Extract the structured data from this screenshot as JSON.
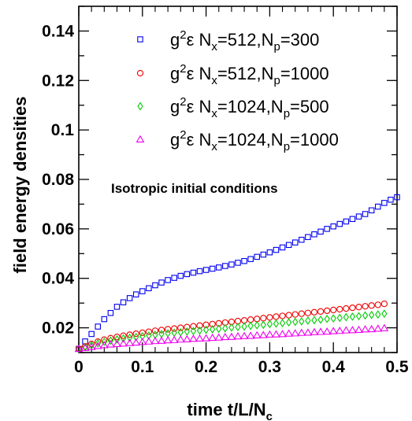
{
  "chart_data": {
    "type": "scatter",
    "xlabel": "time t/L/N",
    "xlabel_sub": "c",
    "ylabel": "field energy densities",
    "xlim": [
      0,
      0.5
    ],
    "ylim": [
      0.01,
      0.15
    ],
    "x_ticks": [
      0,
      0.1,
      0.2,
      0.3,
      0.4,
      0.5
    ],
    "x_tick_labels": [
      "0",
      "0.1",
      "0.2",
      "0.3",
      "0.4",
      "0.5"
    ],
    "y_ticks": [
      0.02,
      0.04,
      0.06,
      0.08,
      0.1,
      0.12,
      0.14
    ],
    "y_tick_labels": [
      "0.02",
      "0.04",
      "0.06",
      "0.08",
      "0.1",
      "0.12",
      "0.14"
    ],
    "annotation": "Isotropic initial conditions",
    "legend_position": "top-right",
    "series": [
      {
        "label": {
          "base": "g",
          "sup": "2",
          "rest": "ε N",
          "sub1": "x",
          "mid": "=512,N",
          "sub2": "p",
          "tail": "=300"
        },
        "marker": "square",
        "color": "#0000ee",
        "x": [
          0,
          0.01,
          0.02,
          0.03,
          0.04,
          0.05,
          0.06,
          0.07,
          0.08,
          0.09,
          0.1,
          0.11,
          0.12,
          0.13,
          0.14,
          0.15,
          0.16,
          0.17,
          0.18,
          0.19,
          0.2,
          0.21,
          0.22,
          0.23,
          0.24,
          0.25,
          0.26,
          0.27,
          0.28,
          0.29,
          0.3,
          0.31,
          0.32,
          0.33,
          0.34,
          0.35,
          0.36,
          0.37,
          0.38,
          0.39,
          0.4,
          0.41,
          0.42,
          0.43,
          0.44,
          0.45,
          0.46,
          0.47,
          0.48,
          0.49,
          0.5
        ],
        "y": [
          0.0115,
          0.0145,
          0.0175,
          0.0205,
          0.0235,
          0.026,
          0.0285,
          0.0303,
          0.032,
          0.0335,
          0.0348,
          0.036,
          0.0372,
          0.0383,
          0.0393,
          0.0402,
          0.041,
          0.0417,
          0.0423,
          0.0429,
          0.0434,
          0.0439,
          0.0444,
          0.045,
          0.0456,
          0.0463,
          0.047,
          0.0478,
          0.0487,
          0.0496,
          0.0505,
          0.0515,
          0.0525,
          0.0535,
          0.0545,
          0.0556,
          0.0567,
          0.0578,
          0.0589,
          0.06,
          0.061,
          0.062,
          0.063,
          0.064,
          0.065,
          0.066,
          0.0675,
          0.069,
          0.0705,
          0.0718,
          0.0728
        ]
      },
      {
        "label": {
          "base": "g",
          "sup": "2",
          "rest": "ε N",
          "sub1": "x",
          "mid": "=512,N",
          "sub2": "p",
          "tail": "=1000"
        },
        "marker": "circle",
        "color": "#ee0000",
        "x": [
          0,
          0.01,
          0.02,
          0.03,
          0.04,
          0.05,
          0.06,
          0.07,
          0.08,
          0.09,
          0.1,
          0.11,
          0.12,
          0.13,
          0.14,
          0.15,
          0.16,
          0.17,
          0.18,
          0.19,
          0.2,
          0.21,
          0.22,
          0.23,
          0.24,
          0.25,
          0.26,
          0.27,
          0.28,
          0.29,
          0.3,
          0.31,
          0.32,
          0.33,
          0.34,
          0.35,
          0.36,
          0.37,
          0.38,
          0.39,
          0.4,
          0.41,
          0.42,
          0.43,
          0.44,
          0.45,
          0.46,
          0.47,
          0.48
        ],
        "y": [
          0.0115,
          0.0125,
          0.0135,
          0.0144,
          0.0152,
          0.0158,
          0.0163,
          0.0168,
          0.0172,
          0.0176,
          0.018,
          0.0184,
          0.0188,
          0.0191,
          0.0194,
          0.0197,
          0.02,
          0.0203,
          0.0206,
          0.0209,
          0.0212,
          0.0215,
          0.0218,
          0.0221,
          0.0224,
          0.0227,
          0.023,
          0.0233,
          0.0236,
          0.0239,
          0.0242,
          0.0245,
          0.0248,
          0.0251,
          0.0254,
          0.0257,
          0.026,
          0.0263,
          0.0266,
          0.0269,
          0.0272,
          0.0275,
          0.0278,
          0.0281,
          0.0284,
          0.0287,
          0.029,
          0.0293,
          0.0297
        ]
      },
      {
        "label": {
          "base": "g",
          "sup": "2",
          "rest": "ε N",
          "sub1": "x",
          "mid": "=1024,N",
          "sub2": "p",
          "tail": "=500"
        },
        "marker": "diamond",
        "color": "#00cc00",
        "x": [
          0,
          0.01,
          0.02,
          0.03,
          0.04,
          0.05,
          0.06,
          0.07,
          0.08,
          0.09,
          0.1,
          0.11,
          0.12,
          0.13,
          0.14,
          0.15,
          0.16,
          0.17,
          0.18,
          0.19,
          0.2,
          0.21,
          0.22,
          0.23,
          0.24,
          0.25,
          0.26,
          0.27,
          0.28,
          0.29,
          0.3,
          0.31,
          0.32,
          0.33,
          0.34,
          0.35,
          0.36,
          0.37,
          0.38,
          0.39,
          0.4,
          0.41,
          0.42,
          0.43,
          0.44,
          0.45,
          0.46,
          0.47,
          0.48
        ],
        "y": [
          0.0115,
          0.0122,
          0.013,
          0.0137,
          0.0143,
          0.0148,
          0.0153,
          0.0157,
          0.016,
          0.0163,
          0.0166,
          0.0169,
          0.0172,
          0.0175,
          0.0178,
          0.018,
          0.0182,
          0.0185,
          0.0187,
          0.0189,
          0.0192,
          0.0194,
          0.0196,
          0.0198,
          0.0201,
          0.0203,
          0.0205,
          0.0208,
          0.021,
          0.0212,
          0.0215,
          0.0217,
          0.0219,
          0.0222,
          0.0224,
          0.0226,
          0.0229,
          0.0231,
          0.0233,
          0.0236,
          0.0238,
          0.024,
          0.0243,
          0.0245,
          0.0247,
          0.025,
          0.0252,
          0.0254,
          0.0257
        ]
      },
      {
        "label": {
          "base": "g",
          "sup": "2",
          "rest": "ε N",
          "sub1": "x",
          "mid": "=1024,N",
          "sub2": "p",
          "tail": "=1000"
        },
        "marker": "triangle",
        "color": "#ee00ee",
        "x": [
          0,
          0.01,
          0.02,
          0.03,
          0.04,
          0.05,
          0.06,
          0.07,
          0.08,
          0.09,
          0.1,
          0.11,
          0.12,
          0.13,
          0.14,
          0.15,
          0.16,
          0.17,
          0.18,
          0.19,
          0.2,
          0.21,
          0.22,
          0.23,
          0.24,
          0.25,
          0.26,
          0.27,
          0.28,
          0.29,
          0.3,
          0.31,
          0.32,
          0.33,
          0.34,
          0.35,
          0.36,
          0.37,
          0.38,
          0.39,
          0.4,
          0.41,
          0.42,
          0.43,
          0.44,
          0.45,
          0.46,
          0.47,
          0.48
        ],
        "y": [
          0.0115,
          0.0119,
          0.0123,
          0.0127,
          0.013,
          0.0133,
          0.0135,
          0.0137,
          0.0139,
          0.0141,
          0.0143,
          0.0145,
          0.0147,
          0.0148,
          0.015,
          0.0151,
          0.0153,
          0.0154,
          0.0156,
          0.0157,
          0.0158,
          0.016,
          0.0161,
          0.0163,
          0.0164,
          0.0166,
          0.0167,
          0.0168,
          0.017,
          0.0171,
          0.0173,
          0.0174,
          0.0175,
          0.0177,
          0.0178,
          0.018,
          0.0181,
          0.0183,
          0.0184,
          0.0185,
          0.0187,
          0.0188,
          0.019,
          0.0191,
          0.0192,
          0.0194,
          0.0195,
          0.0197,
          0.0199
        ]
      }
    ]
  }
}
